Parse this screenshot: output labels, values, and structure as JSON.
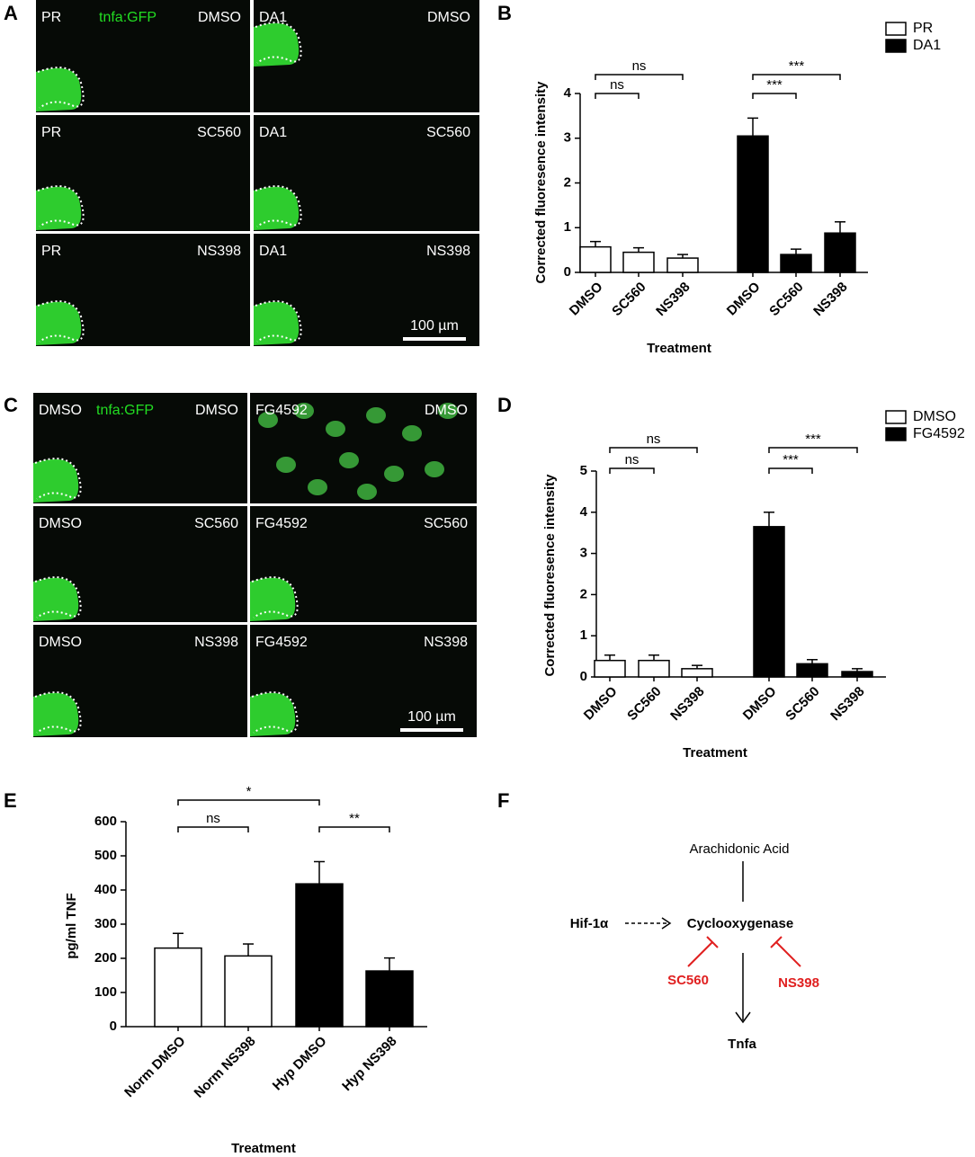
{
  "panel_labels": [
    "A",
    "B",
    "C",
    "D",
    "E",
    "F"
  ],
  "image_panels": [
    {
      "cells": [
        [
          {
            "left": "PR",
            "marker": "tnfa:GFP",
            "right": "DMSO"
          },
          {
            "left": "DA1",
            "right": "DMSO"
          }
        ],
        [
          {
            "left": "PR",
            "right": "SC560"
          },
          {
            "left": "DA1",
            "right": "SC560"
          }
        ],
        [
          {
            "left": "PR",
            "right": "NS398"
          },
          {
            "left": "DA1",
            "right": "NS398"
          }
        ]
      ],
      "scale_bar": "100 µm"
    },
    {
      "cells": [
        [
          {
            "left": "DMSO",
            "marker": "tnfa:GFP",
            "right": "DMSO"
          },
          {
            "left": "FG4592",
            "right": "DMSO"
          }
        ],
        [
          {
            "left": "DMSO",
            "right": "SC560"
          },
          {
            "left": "FG4592",
            "right": "SC560"
          }
        ],
        [
          {
            "left": "DMSO",
            "right": "NS398"
          },
          {
            "left": "FG4592",
            "right": "NS398"
          }
        ]
      ],
      "scale_bar": "100 µm"
    }
  ],
  "chart_data": [
    {
      "type": "bar",
      "categories": [
        "DMSO",
        "SC560",
        "NS398"
      ],
      "series": [
        {
          "name": "PR",
          "color": "#ffffff",
          "values": [
            0.57,
            0.45,
            0.32
          ],
          "errors": [
            0.12,
            0.1,
            0.08
          ]
        },
        {
          "name": "DA1",
          "color": "#000000",
          "values": [
            3.05,
            0.4,
            0.88
          ],
          "errors": [
            0.4,
            0.12,
            0.25
          ]
        }
      ],
      "ylim": [
        0,
        4
      ],
      "yticks": [
        0,
        1,
        2,
        3,
        4
      ],
      "ylabel": "Corrected fluoresence intensity",
      "xlabel": "Treatment",
      "annotations": [
        "ns",
        "ns",
        "***",
        "***"
      ]
    },
    {
      "type": "bar",
      "categories": [
        "DMSO",
        "SC560",
        "NS398"
      ],
      "series": [
        {
          "name": "DMSO",
          "color": "#ffffff",
          "values": [
            0.4,
            0.4,
            0.2
          ],
          "errors": [
            0.13,
            0.13,
            0.08
          ]
        },
        {
          "name": "FG4592",
          "color": "#000000",
          "values": [
            3.65,
            0.32,
            0.13
          ],
          "errors": [
            0.35,
            0.1,
            0.07
          ]
        }
      ],
      "ylim": [
        0,
        5
      ],
      "yticks": [
        0,
        1,
        2,
        3,
        4,
        5
      ],
      "ylabel": "Corrected fluoresence intensity",
      "xlabel": "Treatment",
      "annotations": [
        "ns",
        "ns",
        "***",
        "***"
      ]
    },
    {
      "type": "bar",
      "categories": [
        "Norm DMSO",
        "Norm NS398",
        "Hyp DMSO",
        "Hyp NS398"
      ],
      "values": [
        230,
        207,
        418,
        163
      ],
      "errors": [
        43,
        35,
        65,
        38
      ],
      "colors": [
        "#ffffff",
        "#ffffff",
        "#000000",
        "#000000"
      ],
      "ylim": [
        0,
        600
      ],
      "yticks": [
        0,
        100,
        200,
        300,
        400,
        500,
        600
      ],
      "ylabel": "pg/ml TNF",
      "xlabel": "Treatment",
      "annotations": [
        "*",
        "ns",
        "**"
      ]
    }
  ],
  "diagram": {
    "nodes": [
      "Arachidonic Acid",
      "Hif-1α",
      "Cyclooxygenase",
      "Tnfa"
    ],
    "inhibitors": [
      "SC560",
      "NS398"
    ]
  }
}
